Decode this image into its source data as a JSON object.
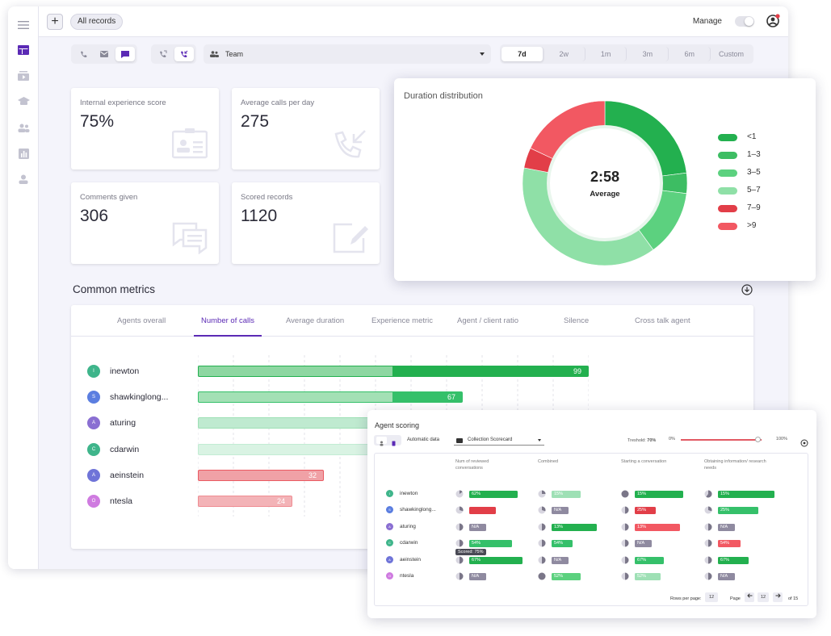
{
  "topbar": {
    "add_label": "+",
    "chip_label": "All records",
    "manage_label": "Manage"
  },
  "filters": {
    "team_label": "Team",
    "ranges": [
      "7d",
      "2w",
      "1m",
      "3m",
      "6m",
      "Custom"
    ],
    "active_range": "7d"
  },
  "cards": [
    {
      "label": "Internal experience score",
      "value": "75%",
      "icon": "id-card-icon"
    },
    {
      "label": "Average calls per day",
      "value": "275",
      "icon": "incoming-call-icon"
    },
    {
      "label": "Comments given",
      "value": "306",
      "icon": "comments-icon"
    },
    {
      "label": "Scored records",
      "value": "1120",
      "icon": "edit-note-icon"
    }
  ],
  "metrics": {
    "title": "Common metrics",
    "tabs": [
      "Agents overall",
      "Number of calls",
      "Average duration",
      "Experience metric",
      "Agent / client ratio",
      "Silence",
      "Cross talk agent"
    ],
    "active_tab": "Number of calls",
    "agents": [
      {
        "initial": "I",
        "name": "inewton",
        "value": 99,
        "label": "99",
        "color": "#23b04f",
        "fill": "#8ed7a2",
        "avatar": "#3fb58b"
      },
      {
        "initial": "S",
        "name": "shawkinglong...",
        "value": 67,
        "label": "67",
        "color": "#35c06a",
        "fill": "#a3e0b5",
        "avatar": "#5b7ee0"
      },
      {
        "initial": "A",
        "name": "aturing",
        "value": 55,
        "label": "",
        "color": "#9ee0b5",
        "fill": "#bfead0",
        "avatar": "#8a6fd2"
      },
      {
        "initial": "C",
        "name": "cdarwin",
        "value": 48,
        "label": "",
        "color": "#c2ecd3",
        "fill": "#d9f3e3",
        "avatar": "#3fb58b"
      },
      {
        "initial": "A",
        "name": "aeinstein",
        "value": 32,
        "label": "32",
        "color": "#ea5a62",
        "fill": "#f0a1a6",
        "avatar": "#6f74d8"
      },
      {
        "initial": "O",
        "name": "ntesla",
        "value": 24,
        "label": "24",
        "color": "#ef8c92",
        "fill": "#f3b3b7",
        "avatar": "#cf7be0"
      }
    ]
  },
  "duration": {
    "title": "Duration distribution",
    "center_value": "2:58",
    "center_label": "Average",
    "segments": [
      {
        "label": "<1",
        "value": 23,
        "color": "#23b04f"
      },
      {
        "label": "1–3",
        "value": 4,
        "color": "#3dbd63"
      },
      {
        "label": "3–5",
        "value": 13,
        "color": "#5cd17f"
      },
      {
        "label": "5–7",
        "value": 38,
        "color": "#8fe0a7"
      },
      {
        "label": "7–9",
        "value": 4,
        "color": "#e23e48"
      },
      {
        "label": ">9",
        "value": 18,
        "color": "#f25862"
      }
    ]
  },
  "scoring": {
    "title": "Agent scoring",
    "automatic_label": "Automatic data",
    "scorecard": "Collection Scorecard",
    "threshold_label": "Treshold:",
    "threshold_value": "70%",
    "slider_min": "0%",
    "slider_max": "100%",
    "columns": [
      "Num of reviewed conversations",
      "Combined",
      "Starting a conversation",
      "Obtaining information/ research needs"
    ],
    "rows": [
      {
        "initial": "I",
        "name": "inewton",
        "avatar": "#3fb58b",
        "cells": [
          {
            "pie": 0.15,
            "label": "62%",
            "color": "#23b04f",
            "w": 60
          },
          {
            "pie": 0.25,
            "label": "15%",
            "color": "#9ee0b5",
            "w": 36
          },
          {
            "pie": 1.0,
            "label": "15%",
            "color": "#23b04f",
            "w": 60
          },
          {
            "pie": 0.6,
            "label": "15%",
            "color": "#23b04f",
            "w": 70
          }
        ]
      },
      {
        "initial": "S",
        "name": "shawkinglong...",
        "avatar": "#5b7ee0",
        "cells": [
          {
            "pie": 0.3,
            "label": "",
            "color": "#e23e48",
            "w": 33
          },
          {
            "pie": 0.3,
            "label": "N/A",
            "color": "na",
            "w": 21
          },
          {
            "pie": 0.5,
            "label": "25%",
            "color": "#e23e48",
            "w": 26
          },
          {
            "pie": 0.3,
            "label": "25%",
            "color": "#35c06a",
            "w": 50
          }
        ]
      },
      {
        "initial": "A",
        "name": "aturing",
        "avatar": "#8a6fd2",
        "cells": [
          {
            "pie": 0.5,
            "label": "N/A",
            "color": "na",
            "w": 21
          },
          {
            "pie": 0.5,
            "label": "13%",
            "color": "#23b04f",
            "w": 56
          },
          {
            "pie": 0.5,
            "label": "13%",
            "color": "#f25862",
            "w": 56
          },
          {
            "pie": 0.5,
            "label": "N/A",
            "color": "na",
            "w": 21
          }
        ]
      },
      {
        "initial": "C",
        "name": "cdarwin",
        "avatar": "#3fb58b",
        "cells": [
          {
            "pie": 0.5,
            "label": "54%",
            "color": "#35c06a",
            "w": 53
          },
          {
            "pie": 0.5,
            "label": "54%",
            "color": "#35c06a",
            "w": 26
          },
          {
            "pie": 0.5,
            "label": "N/A",
            "color": "na",
            "w": 21
          },
          {
            "pie": 0.5,
            "label": "54%",
            "color": "#f25862",
            "w": 28
          }
        ]
      },
      {
        "initial": "A",
        "name": "aeinstein",
        "avatar": "#6f74d8",
        "cells": [
          {
            "pie": 0.5,
            "label": "67%",
            "color": "#23b04f",
            "w": 66
          },
          {
            "pie": 0.5,
            "label": "N/A",
            "color": "na",
            "w": 21
          },
          {
            "pie": 0.5,
            "label": "67%",
            "color": "#35c06a",
            "w": 36
          },
          {
            "pie": 0.5,
            "label": "67%",
            "color": "#23b04f",
            "w": 38
          }
        ]
      },
      {
        "initial": "O",
        "name": "ntesla",
        "avatar": "#cf7be0",
        "cells": [
          {
            "pie": 0.5,
            "label": "N/A",
            "color": "na",
            "w": 21
          },
          {
            "pie": 1.0,
            "label": "52%",
            "color": "#5cd17f",
            "w": 36
          },
          {
            "pie": 0.5,
            "label": "52%",
            "color": "#9ee0b5",
            "w": 32
          },
          {
            "pie": 0.5,
            "label": "N/A",
            "color": "na",
            "w": 21
          }
        ]
      }
    ],
    "tooltip": "Scored: 75%",
    "rows_per_page_label": "Rows per page:",
    "rows_per_page": "12",
    "page_label": "Page",
    "page_value": "12",
    "page_of": "of 15"
  }
}
